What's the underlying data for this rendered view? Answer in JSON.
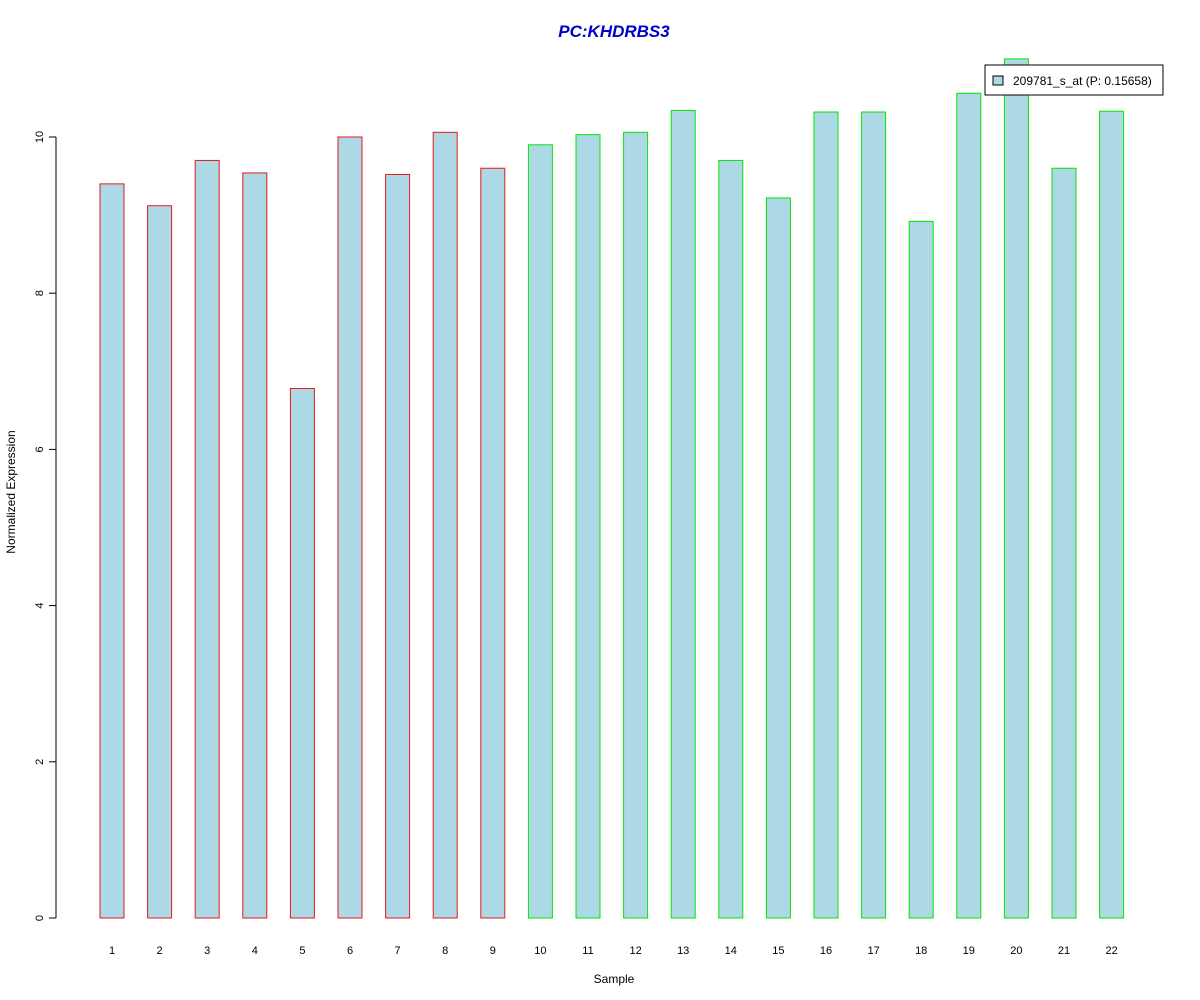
{
  "chart_data": {
    "type": "bar",
    "title": "PC:KHDRBS3",
    "title_color": "#0000CC",
    "xlabel": "Sample",
    "ylabel": "Normalized Expression",
    "ylim": [
      0,
      11
    ],
    "yticks": [
      0,
      2,
      4,
      6,
      8,
      10
    ],
    "categories": [
      "1",
      "2",
      "3",
      "4",
      "5",
      "6",
      "7",
      "8",
      "9",
      "10",
      "11",
      "12",
      "13",
      "14",
      "15",
      "16",
      "17",
      "18",
      "19",
      "20",
      "21",
      "22"
    ],
    "values": [
      9.4,
      9.12,
      9.7,
      9.54,
      6.78,
      10.0,
      9.52,
      10.06,
      9.6,
      9.9,
      10.03,
      10.06,
      10.34,
      9.7,
      9.22,
      10.32,
      10.32,
      8.92,
      10.56,
      11.0,
      9.6,
      10.33
    ],
    "bar_fill": "#ADD8E6",
    "border_colors": [
      "#E31A1C",
      "#E31A1C",
      "#E31A1C",
      "#E31A1C",
      "#E31A1C",
      "#E31A1C",
      "#E31A1C",
      "#E31A1C",
      "#E31A1C",
      "#00E600",
      "#00E600",
      "#00E600",
      "#00E600",
      "#00E600",
      "#00E600",
      "#00E600",
      "#00E600",
      "#00E600",
      "#00E600",
      "#00E600",
      "#00E600",
      "#00E600"
    ],
    "grid": false,
    "legend": {
      "placement": "top-right",
      "entries": [
        {
          "label": "209781_s_at (P: 0.15658)",
          "color": "#ADD8E6"
        }
      ]
    }
  }
}
